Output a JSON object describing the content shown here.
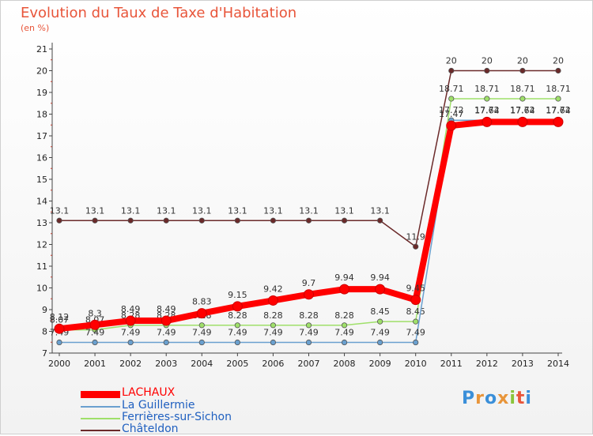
{
  "title": "Evolution du Taux de Taxe d'Habitation",
  "unit": "(en %)",
  "logo": {
    "letters": [
      "P",
      "r",
      "o",
      "x",
      "i",
      "t",
      "i"
    ],
    "colors": [
      "#3a8fd9",
      "#e8953a",
      "#3a8fd9",
      "#e8953a",
      "#8ac43a",
      "#e8553a",
      "#3a8fd9"
    ]
  },
  "chart_data": {
    "type": "line",
    "x": [
      "2000",
      "2001",
      "2002",
      "2003",
      "2004",
      "2005",
      "2006",
      "2007",
      "2008",
      "2009",
      "2010",
      "2011",
      "2012",
      "2013",
      "2014"
    ],
    "ylim": [
      7,
      21
    ],
    "yticks": [
      "7",
      "8",
      "9",
      "10",
      "11",
      "12",
      "13",
      "14",
      "15",
      "16",
      "17",
      "18",
      "19",
      "20",
      "21"
    ],
    "grid": false,
    "legend_position": "bottom-left",
    "series": [
      {
        "name": "LACHAUX",
        "color": "#ff0000",
        "values": [
          8.12,
          8.3,
          8.49,
          8.49,
          8.83,
          9.15,
          9.42,
          9.7,
          9.94,
          9.94,
          9.45,
          17.47,
          17.64,
          17.64,
          17.64
        ],
        "labels": [
          "8.12",
          "8.3",
          "8.49",
          "8.49",
          "8.83",
          "9.15",
          "9.42",
          "9.7",
          "9.94",
          "9.94",
          "9.45",
          "17.47",
          "17.64",
          "17.64",
          "17.64"
        ]
      },
      {
        "name": "La Guillermie",
        "color": "#6aa0cf",
        "values": [
          7.49,
          7.49,
          7.49,
          7.49,
          7.49,
          7.49,
          7.49,
          7.49,
          7.49,
          7.49,
          7.49,
          17.72,
          17.72,
          17.72,
          17.72
        ],
        "labels": [
          "7.49",
          "7.49",
          "7.49",
          "7.49",
          "7.49",
          "7.49",
          "7.49",
          "7.49",
          "7.49",
          "7.49",
          "7.49",
          "17.72",
          "17.72",
          "17.72",
          "17.72"
        ]
      },
      {
        "name": "Ferrières-sur-Sichon",
        "color": "#9fe06a",
        "values": [
          8.07,
          8.07,
          8.28,
          8.28,
          8.28,
          8.28,
          8.28,
          8.28,
          8.28,
          8.45,
          8.45,
          18.71,
          18.71,
          18.71,
          18.71
        ],
        "labels": [
          "8.07",
          "8.07",
          "8.28",
          "8.28",
          "8.28",
          "8.28",
          "8.28",
          "8.28",
          "8.28",
          "8.45",
          "8.45",
          "18.71",
          "18.71",
          "18.71",
          "18.71"
        ]
      },
      {
        "name": "Châteldon",
        "color": "#6b2a2a",
        "values": [
          13.1,
          13.1,
          13.1,
          13.1,
          13.1,
          13.1,
          13.1,
          13.1,
          13.1,
          13.1,
          11.9,
          20,
          20,
          20,
          20
        ],
        "labels": [
          "13.1",
          "13.1",
          "13.1",
          "13.1",
          "13.1",
          "13.1",
          "13.1",
          "13.1",
          "13.1",
          "13.1",
          "11.9",
          "20",
          "20",
          "20",
          "20"
        ]
      }
    ]
  }
}
